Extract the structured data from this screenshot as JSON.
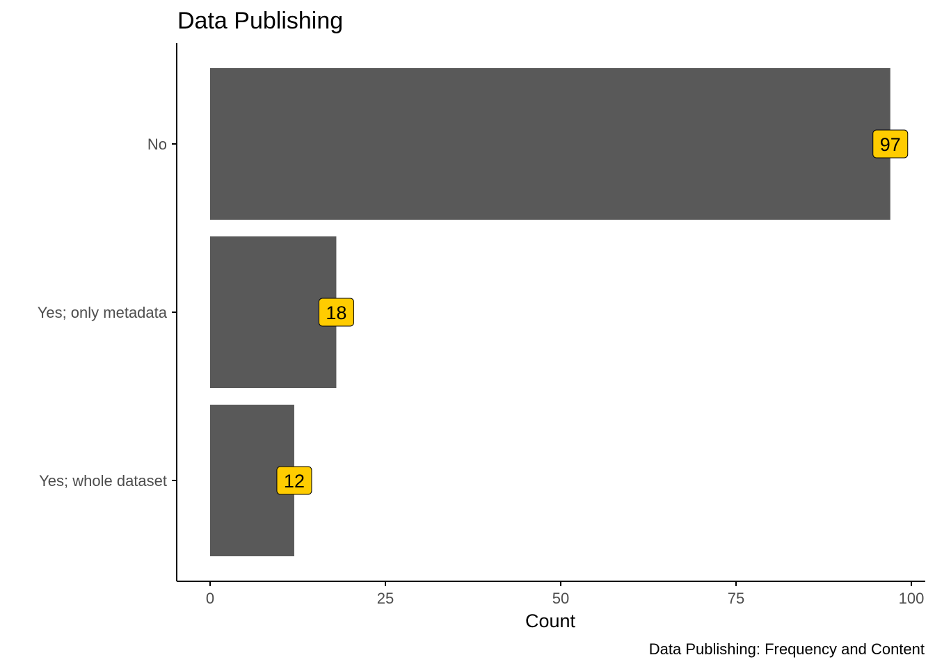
{
  "chart_data": {
    "type": "bar",
    "orientation": "horizontal",
    "title": "Data Publishing",
    "xlabel": "Count",
    "ylabel": "",
    "caption": "Data Publishing: Frequency and Content",
    "categories": [
      "No",
      "Yes; only metadata",
      "Yes; whole dataset"
    ],
    "values": [
      97,
      18,
      12
    ],
    "data_labels": [
      "97",
      "18",
      "12"
    ],
    "xlim": [
      0,
      100
    ],
    "x_ticks": [
      0,
      25,
      50,
      75,
      100
    ],
    "x_tick_labels": [
      "0",
      "25",
      "50",
      "75",
      "100"
    ],
    "grid": false,
    "legend": "none",
    "colors": {
      "bar": "#595959",
      "label_fill": "#ffcc00",
      "label_border": "#000000",
      "axis": "#000000",
      "tick_text": "#4d4d4d",
      "text": "#000000"
    }
  }
}
